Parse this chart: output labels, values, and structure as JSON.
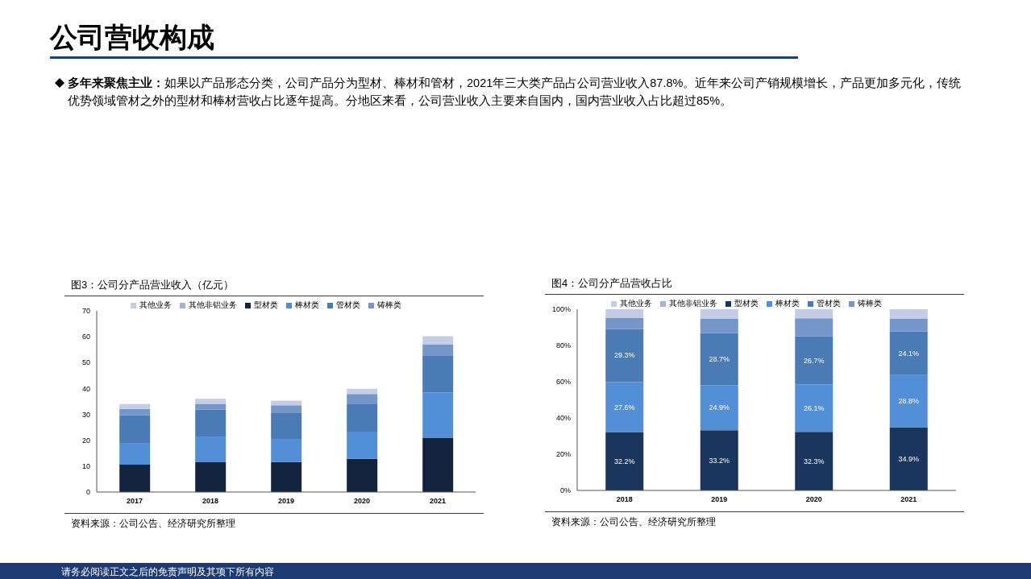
{
  "chart_data": [
    {
      "type": "other",
      "title": "公司营收构成",
      "annotations": [
        "多年来聚焦主业：",
        "如果以产品形态分类，公司产品分为型材、棒材和管材，2021年三大类产品占公司营业收入87.8%。近年来公司产销规模增长，产品更加多元化，传统优势领域管材之外的型材和棒材营收占比逐年提高。分地区来看，公司营业收入主要来自国内，国内营业收入占比超过85%。",
        "请务必阅读正文之后的免责声明及其项下所有内容"
      ]
    },
    {
      "type": "bar",
      "title": "图3：公司分产品营业收入（亿元）",
      "stacked": true,
      "legend": "top",
      "categories": [
        "2017",
        "2018",
        "2019",
        "2020",
        "2021"
      ],
      "ylim": [
        0,
        70
      ],
      "yticks": [
        0,
        10,
        20,
        30,
        40,
        50,
        60,
        70
      ],
      "annotations": [
        "资料来源：公司公告、经济研究所整理"
      ],
      "series": [
        {
          "name": "型材类",
          "color": "#13243f",
          "values": [
            10.6,
            11.5,
            11.6,
            12.8,
            21.0
          ]
        },
        {
          "name": "棒材类",
          "color": "#538fd6",
          "values": [
            8.4,
            10.0,
            8.9,
            10.5,
            17.4
          ]
        },
        {
          "name": "管材类",
          "color": "#4a7bb5",
          "values": [
            10.7,
            10.4,
            10.0,
            10.6,
            14.2
          ]
        },
        {
          "name": "铸棒类",
          "color": "#7596c8",
          "values": [
            2.4,
            2.2,
            3.0,
            4.0,
            4.5
          ]
        },
        {
          "name": "其他非铝业务",
          "color": "#a0b4da",
          "values": [
            0,
            0,
            0,
            0,
            0
          ]
        },
        {
          "name": "其他业务",
          "color": "#c4cde3",
          "values": [
            1.9,
            1.9,
            1.8,
            2.0,
            3.1
          ]
        }
      ]
    },
    {
      "type": "bar",
      "title": "图4：公司分产品营收占比",
      "stacked": true,
      "legend": "top",
      "categories": [
        "2018",
        "2019",
        "2020",
        "2021"
      ],
      "ylim": [
        0,
        100
      ],
      "yticks": [
        {
          "value": 0,
          "label": "0%"
        },
        {
          "value": 20,
          "label": "20%"
        },
        {
          "value": 40,
          "label": "40%"
        },
        {
          "value": 60,
          "label": "60%"
        },
        {
          "value": 80,
          "label": "80%"
        },
        {
          "value": 100,
          "label": "100%"
        }
      ],
      "annotations": [
        "资料来源：公司公告、经济研究所整理"
      ],
      "series": [
        {
          "name": "型材类",
          "color": "#1a365d",
          "values": [
            32.2,
            33.2,
            32.3,
            34.9
          ],
          "value_labels": [
            "32.2%",
            "33.2%",
            "32.3%",
            "34.9%"
          ]
        },
        {
          "name": "棒材类",
          "color": "#538fd6",
          "values": [
            27.6,
            24.9,
            26.1,
            28.8
          ],
          "value_labels": [
            "27.6%",
            "24.9%",
            "26.1%",
            "28.8%"
          ]
        },
        {
          "name": "管材类",
          "color": "#4a7bb5",
          "values": [
            29.3,
            28.7,
            26.7,
            24.1
          ],
          "value_labels": [
            "29.3%",
            "28.7%",
            "26.7%",
            "24.1%"
          ]
        },
        {
          "name": "铸棒类",
          "color": "#7596c8",
          "values": [
            6.2,
            8.1,
            9.9,
            7.1
          ]
        },
        {
          "name": "其他非铝业务",
          "color": "#a0b4da",
          "values": [
            0,
            0,
            0,
            0
          ]
        },
        {
          "name": "其他业务",
          "color": "#c4cde3",
          "values": [
            4.7,
            5.1,
            5.0,
            5.1
          ]
        }
      ]
    }
  ]
}
